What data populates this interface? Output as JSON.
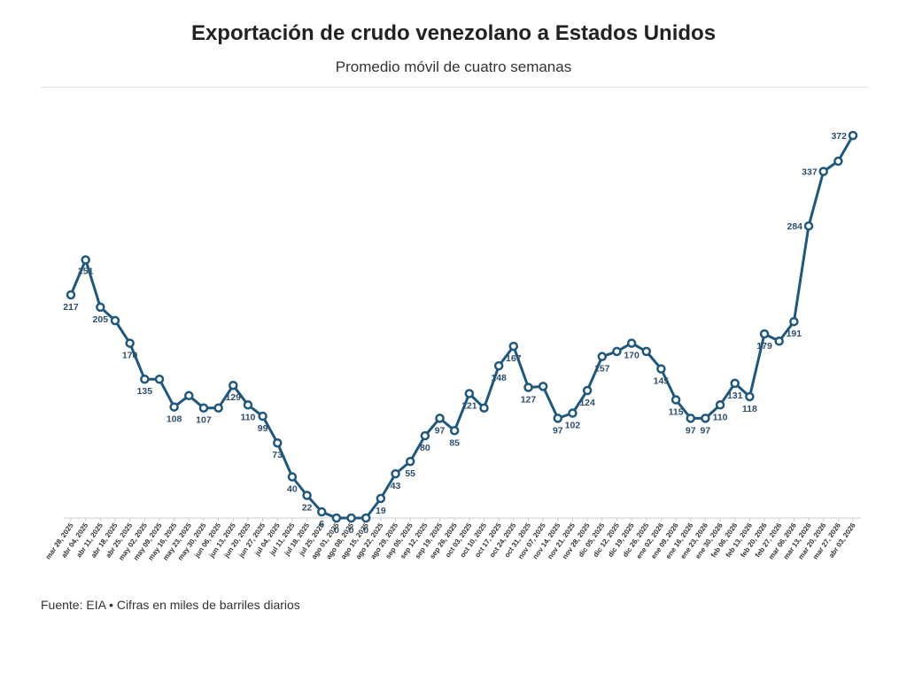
{
  "header": {
    "title": "Exportación de crudo venezolano a Estados Unidos",
    "subtitle": "Promedio móvil de cuatro semanas"
  },
  "footer": {
    "source": "Fuente: EIA • Cifras en miles de barriles diarios"
  },
  "colors": {
    "line": "#20577a",
    "marker_fill": "#ffffff",
    "label": "#2d4e6a",
    "axis": "#cccccc"
  },
  "chart_data": {
    "type": "line",
    "title": "Exportación de crudo venezolano a Estados Unidos",
    "subtitle": "Promedio móvil de cuatro semanas",
    "xlabel": "",
    "ylabel": "",
    "grid": false,
    "legend": "none",
    "x": [
      "mar 28, 2025",
      "abr 04, 2025",
      "abr 11, 2025",
      "abr 18, 2025",
      "abr 25, 2025",
      "may 02, 2025",
      "may 09, 2025",
      "may 16, 2025",
      "may 23, 2025",
      "may 30, 2025",
      "jun 06, 2025",
      "jun 13, 2025",
      "jun 20, 2025",
      "jun 27, 2025",
      "jul 04, 2025",
      "jul 11, 2025",
      "jul 18, 2025",
      "jul 25, 2025",
      "ago 01, 2025",
      "ago 08, 2025",
      "ago 15, 2025",
      "ago 22, 2025",
      "ago 29, 2025",
      "sep 05, 2025",
      "sep 12, 2025",
      "sep 19, 2025",
      "sep 26, 2025",
      "oct 03, 2025",
      "oct 10, 2025",
      "oct 17, 2025",
      "oct 24, 2025",
      "oct 31, 2025",
      "nov 07, 2025",
      "nov 14, 2025",
      "nov 21, 2025",
      "nov 28, 2025",
      "dic 05, 2025",
      "dic 12, 2025",
      "dic 19, 2025",
      "dic 26, 2025",
      "ene 02, 2026",
      "ene 09, 2026",
      "ene 16, 2026",
      "ene 23, 2026",
      "ene 30, 2026",
      "feb 06, 2026",
      "feb 13, 2026",
      "feb 20, 2026",
      "feb 27, 2026",
      "mar 06, 2026",
      "mar 13, 2026",
      "mar 20, 2026",
      "mar 27, 2026",
      "abr 03, 2026"
    ],
    "values": [
      217,
      251,
      205,
      192,
      170,
      135,
      135,
      108,
      119,
      107,
      107,
      129,
      110,
      99,
      73,
      40,
      22,
      6,
      0,
      0,
      0,
      19,
      43,
      55,
      80,
      97,
      85,
      121,
      107,
      148,
      167,
      127,
      128,
      97,
      102,
      124,
      157,
      162,
      170,
      162,
      145,
      115,
      97,
      97,
      110,
      131,
      118,
      179,
      172,
      191,
      284,
      337,
      347,
      372
    ],
    "labels": [
      "217",
      "251",
      "205",
      "",
      "170",
      "135",
      "",
      "108",
      "",
      "107",
      "",
      "129",
      "110",
      "99",
      "73",
      "40",
      "22",
      "6",
      "0",
      "0",
      "0",
      "19",
      "43",
      "55",
      "80",
      "97",
      "85",
      "121",
      "",
      "148",
      "167",
      "127",
      "",
      "97",
      "102",
      "124",
      "157",
      "",
      "170",
      "",
      "145",
      "115",
      "97",
      "97",
      "110",
      "131",
      "118",
      "179",
      "",
      "191",
      "284",
      "337",
      "",
      "372"
    ],
    "ylim": [
      0,
      400
    ]
  }
}
